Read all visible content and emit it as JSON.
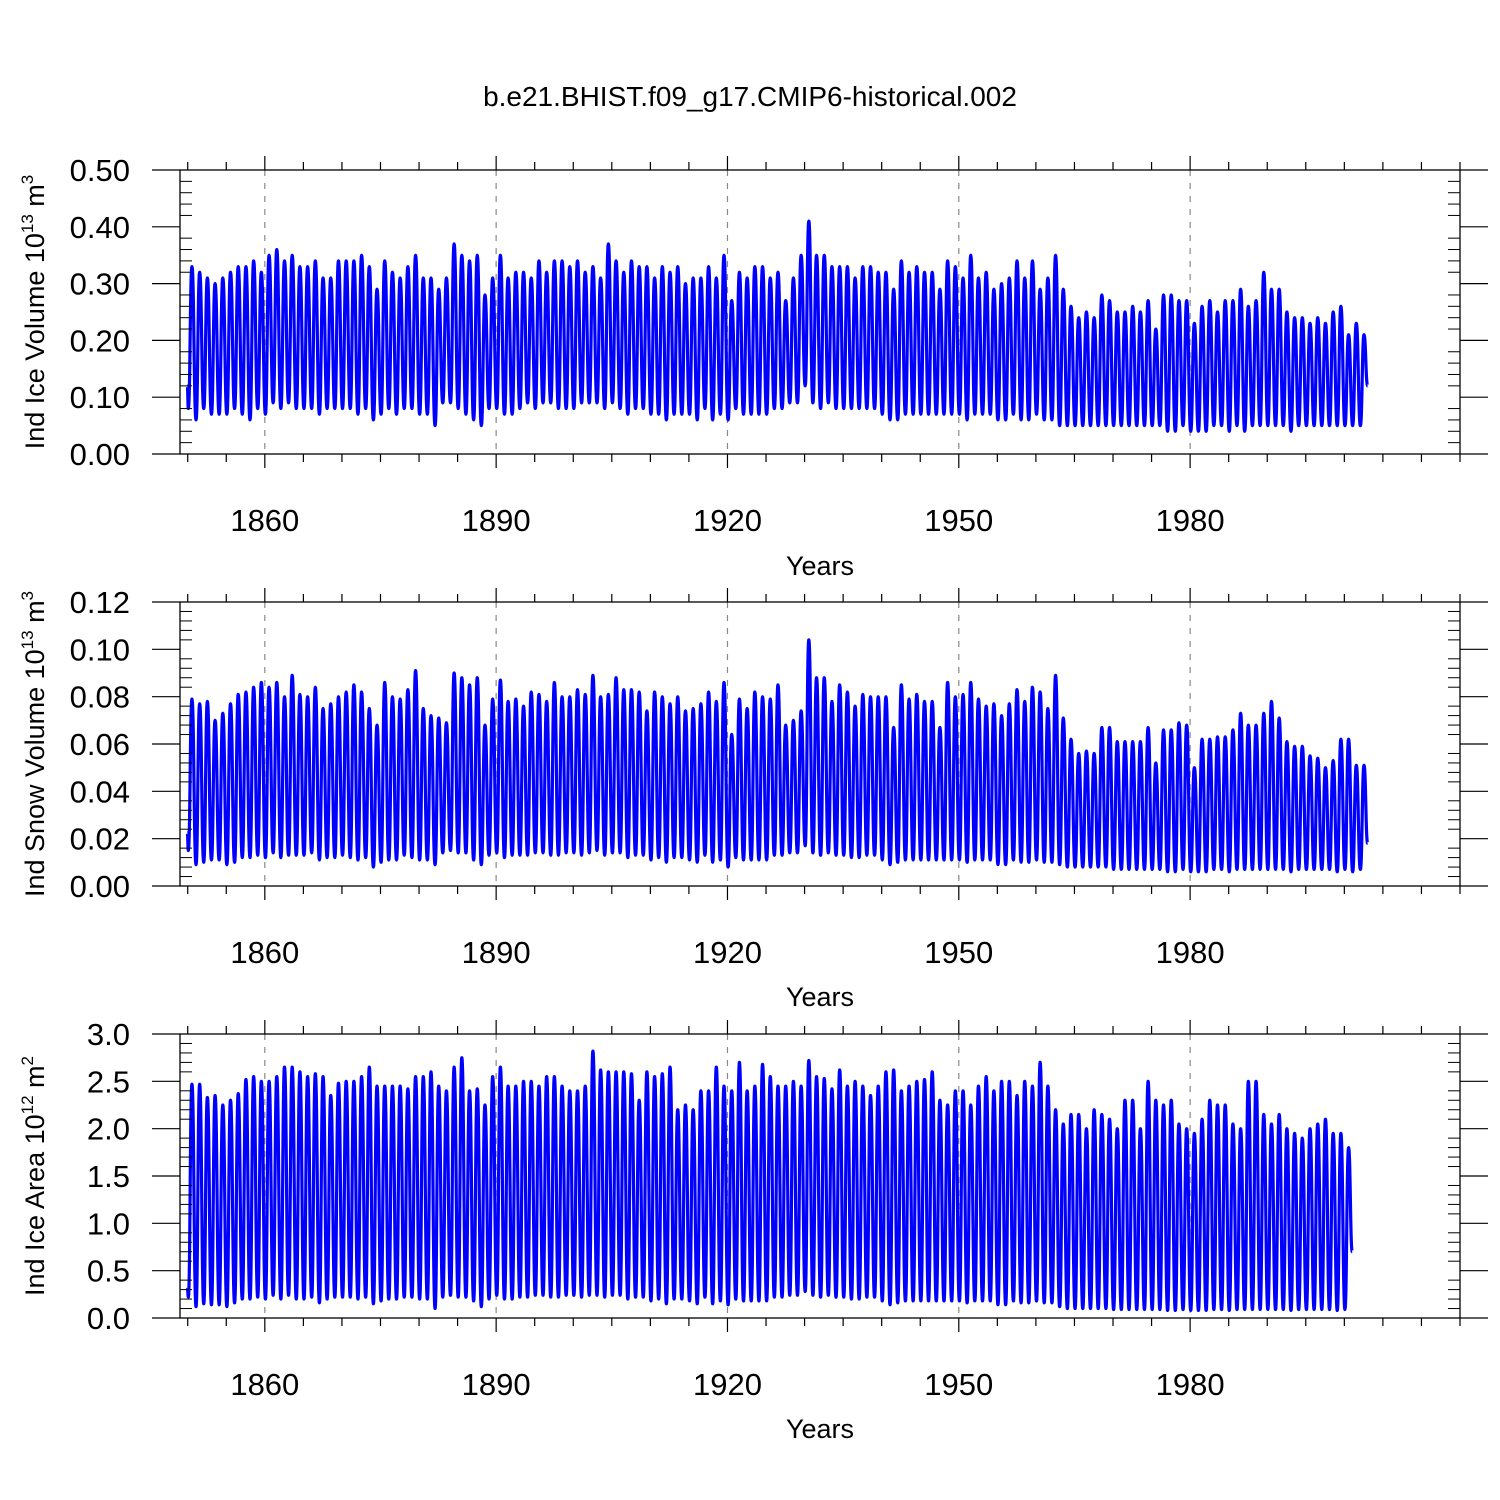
{
  "title": "b.e21.BHIST.f09_g17.CMIP6-historical.002",
  "colors": {
    "series": "#0000ff",
    "axis": "#000000",
    "grid": "#888888"
  },
  "chart_data": [
    {
      "type": "line",
      "title": "",
      "xlabel": "Years",
      "ylabel": {
        "text": "Ind Ice Volume 10",
        "exp": "13",
        "unit": " m",
        "unit_exp": "3"
      },
      "xlim": [
        1849,
        2015
      ],
      "ylim": [
        0.0,
        0.5
      ],
      "x_ticks": [
        1860,
        1890,
        1920,
        1950,
        1980
      ],
      "x_tick_labels": [
        "1860",
        "1890",
        "1920",
        "1950",
        "1980"
      ],
      "y_ticks": [
        0.0,
        0.1,
        0.2,
        0.3,
        0.4,
        0.5
      ],
      "y_tick_labels": [
        "0.00",
        "0.10",
        "0.20",
        "0.30",
        "0.40",
        "0.50"
      ],
      "grid": "vertical dashed at major x ticks",
      "series": [
        {
          "start_year": 1850,
          "peaks": [
            0.33,
            0.32,
            0.31,
            0.3,
            0.31,
            0.32,
            0.33,
            0.33,
            0.34,
            0.32,
            0.35,
            0.36,
            0.34,
            0.35,
            0.33,
            0.33,
            0.34,
            0.31,
            0.31,
            0.34,
            0.34,
            0.34,
            0.35,
            0.33,
            0.29,
            0.34,
            0.32,
            0.31,
            0.33,
            0.35,
            0.31,
            0.31,
            0.29,
            0.31,
            0.37,
            0.35,
            0.34,
            0.35,
            0.28,
            0.31,
            0.35,
            0.31,
            0.32,
            0.32,
            0.31,
            0.34,
            0.32,
            0.34,
            0.34,
            0.33,
            0.34,
            0.32,
            0.33,
            0.31,
            0.37,
            0.34,
            0.32,
            0.34,
            0.33,
            0.33,
            0.31,
            0.33,
            0.32,
            0.33,
            0.3,
            0.31,
            0.31,
            0.33,
            0.31,
            0.35,
            0.27,
            0.32,
            0.31,
            0.33,
            0.33,
            0.31,
            0.32,
            0.27,
            0.31,
            0.35,
            0.41,
            0.35,
            0.35,
            0.33,
            0.33,
            0.33,
            0.31,
            0.33,
            0.33,
            0.32,
            0.32,
            0.29,
            0.34,
            0.32,
            0.33,
            0.32,
            0.32,
            0.29,
            0.34,
            0.33,
            0.31,
            0.35,
            0.31,
            0.32,
            0.29,
            0.3,
            0.31,
            0.34,
            0.31,
            0.34,
            0.29,
            0.31,
            0.35,
            0.29,
            0.26,
            0.24,
            0.25,
            0.24,
            0.28,
            0.27,
            0.25,
            0.25,
            0.26,
            0.25,
            0.27,
            0.22,
            0.28,
            0.28,
            0.27,
            0.27,
            0.23,
            0.26,
            0.27,
            0.25,
            0.27,
            0.27,
            0.29,
            0.26,
            0.27,
            0.32,
            0.29,
            0.29,
            0.25,
            0.24,
            0.24,
            0.23,
            0.24,
            0.23,
            0.25,
            0.26,
            0.21,
            0.23,
            0.21
          ],
          "troughs": [
            0.08,
            0.06,
            0.08,
            0.07,
            0.07,
            0.07,
            0.08,
            0.07,
            0.06,
            0.08,
            0.07,
            0.09,
            0.08,
            0.09,
            0.08,
            0.08,
            0.08,
            0.07,
            0.08,
            0.08,
            0.08,
            0.08,
            0.07,
            0.08,
            0.06,
            0.07,
            0.08,
            0.07,
            0.08,
            0.08,
            0.07,
            0.07,
            0.05,
            0.09,
            0.09,
            0.08,
            0.07,
            0.06,
            0.05,
            0.08,
            0.08,
            0.07,
            0.07,
            0.08,
            0.09,
            0.08,
            0.09,
            0.09,
            0.08,
            0.08,
            0.08,
            0.09,
            0.09,
            0.09,
            0.08,
            0.09,
            0.08,
            0.07,
            0.08,
            0.08,
            0.07,
            0.07,
            0.06,
            0.07,
            0.07,
            0.07,
            0.06,
            0.08,
            0.06,
            0.07,
            0.06,
            0.08,
            0.07,
            0.07,
            0.07,
            0.07,
            0.08,
            0.08,
            0.09,
            0.09,
            0.12,
            0.09,
            0.08,
            0.09,
            0.08,
            0.08,
            0.08,
            0.08,
            0.08,
            0.08,
            0.07,
            0.06,
            0.06,
            0.07,
            0.07,
            0.07,
            0.07,
            0.07,
            0.07,
            0.07,
            0.07,
            0.06,
            0.07,
            0.07,
            0.07,
            0.06,
            0.06,
            0.07,
            0.06,
            0.06,
            0.07,
            0.06,
            0.06,
            0.05,
            0.05,
            0.05,
            0.05,
            0.05,
            0.05,
            0.05,
            0.05,
            0.05,
            0.05,
            0.05,
            0.05,
            0.05,
            0.05,
            0.04,
            0.04,
            0.05,
            0.04,
            0.04,
            0.04,
            0.05,
            0.05,
            0.04,
            0.05,
            0.04,
            0.05,
            0.05,
            0.05,
            0.05,
            0.05,
            0.04,
            0.05,
            0.05,
            0.05,
            0.05,
            0.05,
            0.05,
            0.05,
            0.05,
            0.05
          ],
          "end_value": 0.12
        }
      ]
    },
    {
      "type": "line",
      "title": "",
      "xlabel": "Years",
      "ylabel": {
        "text": "Ind Snow Volume 10",
        "exp": "13",
        "unit": " m",
        "unit_exp": "3"
      },
      "xlim": [
        1849,
        2015
      ],
      "ylim": [
        0.0,
        0.12
      ],
      "x_ticks": [
        1860,
        1890,
        1920,
        1950,
        1980
      ],
      "x_tick_labels": [
        "1860",
        "1890",
        "1920",
        "1950",
        "1980"
      ],
      "y_ticks": [
        0.0,
        0.02,
        0.04,
        0.06,
        0.08,
        0.1,
        0.12
      ],
      "y_tick_labels": [
        "0.00",
        "0.02",
        "0.04",
        "0.06",
        "0.08",
        "0.10",
        "0.12"
      ],
      "grid": "vertical dashed at major x ticks",
      "series": [
        {
          "start_year": 1850,
          "peaks": [
            0.079,
            0.077,
            0.078,
            0.07,
            0.073,
            0.077,
            0.081,
            0.082,
            0.084,
            0.086,
            0.084,
            0.086,
            0.08,
            0.089,
            0.081,
            0.08,
            0.084,
            0.075,
            0.077,
            0.08,
            0.082,
            0.085,
            0.082,
            0.075,
            0.068,
            0.086,
            0.08,
            0.079,
            0.083,
            0.091,
            0.075,
            0.072,
            0.071,
            0.069,
            0.09,
            0.088,
            0.085,
            0.088,
            0.068,
            0.079,
            0.087,
            0.078,
            0.079,
            0.076,
            0.082,
            0.081,
            0.078,
            0.086,
            0.08,
            0.08,
            0.083,
            0.081,
            0.089,
            0.08,
            0.081,
            0.088,
            0.083,
            0.083,
            0.082,
            0.074,
            0.082,
            0.08,
            0.077,
            0.08,
            0.074,
            0.075,
            0.077,
            0.082,
            0.078,
            0.086,
            0.064,
            0.079,
            0.075,
            0.082,
            0.08,
            0.079,
            0.085,
            0.068,
            0.07,
            0.074,
            0.104,
            0.088,
            0.088,
            0.078,
            0.085,
            0.082,
            0.076,
            0.081,
            0.08,
            0.08,
            0.08,
            0.067,
            0.085,
            0.079,
            0.081,
            0.078,
            0.078,
            0.067,
            0.086,
            0.08,
            0.081,
            0.086,
            0.079,
            0.076,
            0.077,
            0.072,
            0.077,
            0.083,
            0.078,
            0.084,
            0.082,
            0.075,
            0.089,
            0.071,
            0.062,
            0.056,
            0.057,
            0.056,
            0.067,
            0.067,
            0.061,
            0.061,
            0.061,
            0.061,
            0.067,
            0.052,
            0.066,
            0.066,
            0.069,
            0.068,
            0.05,
            0.062,
            0.062,
            0.063,
            0.063,
            0.066,
            0.073,
            0.068,
            0.068,
            0.073,
            0.078,
            0.071,
            0.061,
            0.059,
            0.059,
            0.055,
            0.054,
            0.05,
            0.053,
            0.062,
            0.062,
            0.051,
            0.051
          ],
          "troughs": [
            0.015,
            0.009,
            0.01,
            0.011,
            0.011,
            0.009,
            0.01,
            0.012,
            0.012,
            0.013,
            0.012,
            0.014,
            0.012,
            0.013,
            0.013,
            0.013,
            0.014,
            0.011,
            0.012,
            0.012,
            0.013,
            0.012,
            0.011,
            0.012,
            0.008,
            0.01,
            0.011,
            0.011,
            0.013,
            0.012,
            0.011,
            0.011,
            0.009,
            0.014,
            0.015,
            0.014,
            0.014,
            0.011,
            0.009,
            0.013,
            0.014,
            0.012,
            0.013,
            0.013,
            0.013,
            0.014,
            0.014,
            0.013,
            0.013,
            0.014,
            0.014,
            0.013,
            0.014,
            0.015,
            0.013,
            0.014,
            0.014,
            0.012,
            0.013,
            0.013,
            0.011,
            0.012,
            0.01,
            0.012,
            0.012,
            0.011,
            0.01,
            0.013,
            0.01,
            0.011,
            0.008,
            0.012,
            0.011,
            0.011,
            0.011,
            0.011,
            0.013,
            0.013,
            0.014,
            0.014,
            0.017,
            0.014,
            0.013,
            0.014,
            0.013,
            0.013,
            0.012,
            0.012,
            0.013,
            0.013,
            0.011,
            0.009,
            0.01,
            0.011,
            0.011,
            0.011,
            0.011,
            0.011,
            0.011,
            0.011,
            0.011,
            0.01,
            0.011,
            0.011,
            0.011,
            0.009,
            0.009,
            0.011,
            0.01,
            0.01,
            0.011,
            0.01,
            0.01,
            0.009,
            0.008,
            0.008,
            0.008,
            0.008,
            0.008,
            0.008,
            0.007,
            0.007,
            0.007,
            0.007,
            0.007,
            0.007,
            0.007,
            0.006,
            0.006,
            0.007,
            0.006,
            0.006,
            0.006,
            0.007,
            0.007,
            0.006,
            0.007,
            0.007,
            0.007,
            0.007,
            0.007,
            0.007,
            0.007,
            0.006,
            0.007,
            0.007,
            0.007,
            0.007,
            0.007,
            0.006,
            0.007,
            0.006,
            0.007
          ],
          "end_value": 0.018
        }
      ]
    },
    {
      "type": "line",
      "title": "",
      "xlabel": "Years",
      "ylabel": {
        "text": "Ind Ice Area 10",
        "exp": "12",
        "unit": " m",
        "unit_exp": "2"
      },
      "xlim": [
        1849,
        2015
      ],
      "ylim": [
        0.0,
        3.0
      ],
      "x_ticks": [
        1860,
        1890,
        1920,
        1950,
        1980
      ],
      "x_tick_labels": [
        "1860",
        "1890",
        "1920",
        "1950",
        "1980"
      ],
      "y_ticks": [
        0.0,
        0.5,
        1.0,
        1.5,
        2.0,
        2.5,
        3.0
      ],
      "y_tick_labels": [
        "0.0",
        "0.5",
        "1.0",
        "1.5",
        "2.0",
        "2.5",
        "3.0"
      ],
      "grid": "vertical dashed at major x ticks",
      "series": [
        {
          "start_year": 1850,
          "peaks": [
            2.47,
            2.47,
            2.33,
            2.35,
            2.25,
            2.3,
            2.37,
            2.52,
            2.55,
            2.5,
            2.5,
            2.55,
            2.65,
            2.65,
            2.6,
            2.55,
            2.58,
            2.55,
            2.35,
            2.48,
            2.5,
            2.5,
            2.55,
            2.65,
            2.45,
            2.45,
            2.45,
            2.45,
            2.42,
            2.55,
            2.55,
            2.6,
            2.45,
            2.4,
            2.65,
            2.75,
            2.4,
            2.42,
            2.25,
            2.55,
            2.65,
            2.45,
            2.45,
            2.5,
            2.5,
            2.45,
            2.55,
            2.55,
            2.45,
            2.4,
            2.4,
            2.45,
            2.82,
            2.62,
            2.6,
            2.6,
            2.6,
            2.58,
            2.3,
            2.6,
            2.55,
            2.58,
            2.65,
            2.2,
            2.25,
            2.2,
            2.4,
            2.4,
            2.65,
            2.45,
            2.4,
            2.7,
            2.4,
            2.45,
            2.68,
            2.55,
            2.45,
            2.45,
            2.5,
            2.45,
            2.72,
            2.55,
            2.53,
            2.42,
            2.62,
            2.45,
            2.5,
            2.45,
            2.35,
            2.45,
            2.6,
            2.62,
            2.4,
            2.45,
            2.5,
            2.52,
            2.6,
            2.3,
            2.25,
            2.4,
            2.4,
            2.25,
            2.45,
            2.55,
            2.4,
            2.5,
            2.5,
            2.35,
            2.5,
            2.45,
            2.7,
            2.45,
            2.2,
            2.05,
            2.15,
            2.15,
            2.0,
            2.2,
            2.15,
            2.1,
            2.0,
            2.3,
            2.3,
            2.0,
            2.5,
            2.3,
            2.25,
            2.3,
            2.05,
            2.0,
            1.95,
            2.1,
            2.3,
            2.25,
            2.25,
            2.05,
            2.0,
            2.5,
            2.5,
            2.15,
            2.05,
            2.15,
            2.0,
            1.95,
            1.9,
            2.0,
            2.05,
            2.1,
            1.95,
            1.95,
            1.8
          ],
          "troughs": [
            0.22,
            0.12,
            0.15,
            0.14,
            0.14,
            0.12,
            0.16,
            0.2,
            0.2,
            0.22,
            0.2,
            0.24,
            0.2,
            0.24,
            0.2,
            0.2,
            0.22,
            0.16,
            0.2,
            0.22,
            0.22,
            0.22,
            0.2,
            0.22,
            0.15,
            0.18,
            0.2,
            0.2,
            0.22,
            0.22,
            0.2,
            0.2,
            0.1,
            0.22,
            0.24,
            0.22,
            0.22,
            0.18,
            0.12,
            0.2,
            0.24,
            0.2,
            0.2,
            0.22,
            0.22,
            0.24,
            0.24,
            0.22,
            0.22,
            0.24,
            0.24,
            0.22,
            0.24,
            0.24,
            0.22,
            0.24,
            0.24,
            0.2,
            0.22,
            0.22,
            0.18,
            0.2,
            0.15,
            0.2,
            0.2,
            0.18,
            0.15,
            0.22,
            0.15,
            0.18,
            0.14,
            0.2,
            0.18,
            0.18,
            0.18,
            0.18,
            0.22,
            0.22,
            0.24,
            0.24,
            0.28,
            0.24,
            0.22,
            0.24,
            0.22,
            0.22,
            0.2,
            0.2,
            0.22,
            0.22,
            0.18,
            0.14,
            0.16,
            0.18,
            0.18,
            0.18,
            0.18,
            0.18,
            0.18,
            0.18,
            0.18,
            0.16,
            0.18,
            0.18,
            0.18,
            0.14,
            0.14,
            0.18,
            0.16,
            0.16,
            0.18,
            0.16,
            0.16,
            0.12,
            0.1,
            0.1,
            0.1,
            0.1,
            0.1,
            0.1,
            0.09,
            0.09,
            0.09,
            0.09,
            0.09,
            0.09,
            0.09,
            0.08,
            0.08,
            0.09,
            0.08,
            0.08,
            0.08,
            0.09,
            0.09,
            0.08,
            0.09,
            0.09,
            0.09,
            0.09,
            0.09,
            0.09,
            0.09,
            0.08,
            0.09,
            0.09,
            0.09,
            0.09,
            0.09,
            0.08,
            0.09,
            0.08,
            0.09
          ],
          "end_value": 0.7
        }
      ]
    }
  ]
}
